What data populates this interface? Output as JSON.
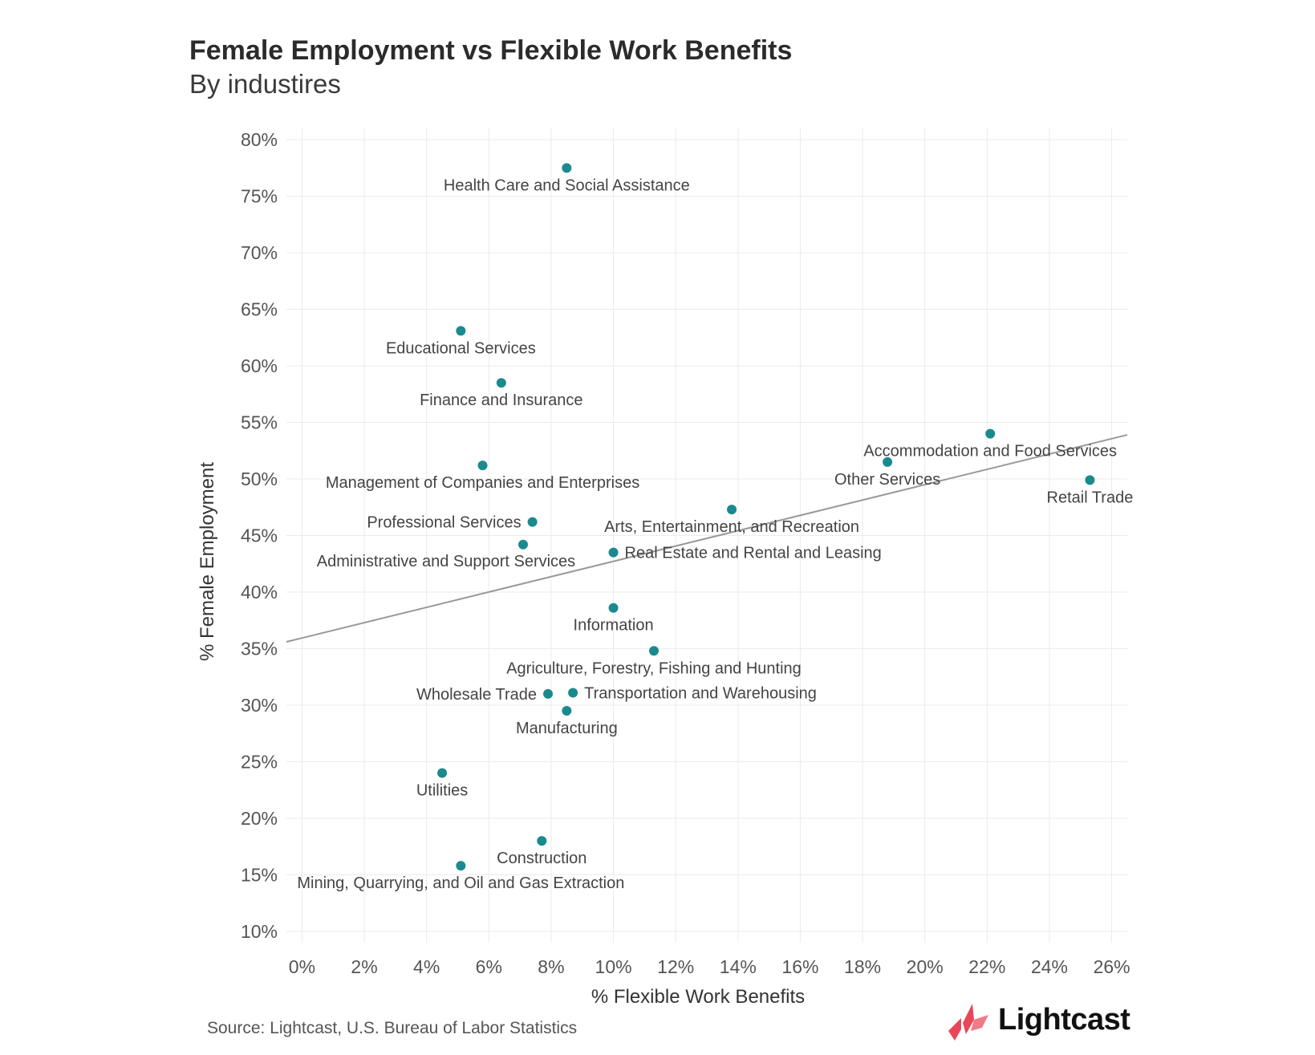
{
  "chart_data": {
    "type": "scatter",
    "title": "Female Employment vs Flexible Work Benefits",
    "subtitle": "By industires",
    "xlabel": "% Flexible Work Benefits",
    "ylabel": "% Female Employment",
    "xlim": [
      -0.5,
      26.5
    ],
    "ylim": [
      9,
      81
    ],
    "x_ticks": [
      0,
      2,
      4,
      6,
      8,
      10,
      12,
      14,
      16,
      18,
      20,
      22,
      24,
      26
    ],
    "x_tick_labels": [
      "0%",
      "2%",
      "4%",
      "6%",
      "8%",
      "10%",
      "12%",
      "14%",
      "16%",
      "18%",
      "20%",
      "22%",
      "24%",
      "26%"
    ],
    "y_ticks": [
      10,
      15,
      20,
      25,
      30,
      35,
      40,
      45,
      50,
      55,
      60,
      65,
      70,
      75,
      80
    ],
    "y_tick_labels": [
      "10%",
      "15%",
      "20%",
      "25%",
      "30%",
      "35%",
      "40%",
      "45%",
      "50%",
      "55%",
      "60%",
      "65%",
      "70%",
      "75%",
      "80%"
    ],
    "grid": true,
    "point_color": "#1a8a8f",
    "trendline": {
      "x": [
        -0.5,
        26.5
      ],
      "y": [
        35.6,
        53.9
      ],
      "color": "#999999"
    },
    "points": [
      {
        "label": "Health Care and Social Assistance",
        "x": 8.5,
        "y": 77.5,
        "pos": "below"
      },
      {
        "label": "Educational Services",
        "x": 5.1,
        "y": 63.1,
        "pos": "below"
      },
      {
        "label": "Finance and Insurance",
        "x": 6.4,
        "y": 58.5,
        "pos": "below"
      },
      {
        "label": "Management of Companies and Enterprises",
        "x": 5.8,
        "y": 51.2,
        "pos": "below"
      },
      {
        "label": "Professional Services",
        "x": 7.4,
        "y": 46.2,
        "pos": "left"
      },
      {
        "label": "Administrative and Support Services",
        "x": 7.1,
        "y": 44.2,
        "pos": "below-left"
      },
      {
        "label": "Real Estate and Rental and Leasing",
        "x": 10.0,
        "y": 43.5,
        "pos": "right"
      },
      {
        "label": "Arts, Entertainment, and Recreation",
        "x": 13.8,
        "y": 47.3,
        "pos": "below"
      },
      {
        "label": "Accommodation and Food Services",
        "x": 22.1,
        "y": 54.0,
        "pos": "below"
      },
      {
        "label": "Other Services",
        "x": 18.8,
        "y": 51.5,
        "pos": "below"
      },
      {
        "label": "Retail Trade",
        "x": 25.3,
        "y": 49.9,
        "pos": "below"
      },
      {
        "label": "Information",
        "x": 10.0,
        "y": 38.6,
        "pos": "below"
      },
      {
        "label": "Agriculture, Forestry, Fishing and Hunting",
        "x": 11.3,
        "y": 34.8,
        "pos": "below"
      },
      {
        "label": "Wholesale Trade",
        "x": 7.9,
        "y": 31.0,
        "pos": "left"
      },
      {
        "label": "Transportation and Warehousing",
        "x": 8.7,
        "y": 31.1,
        "pos": "right"
      },
      {
        "label": "Manufacturing",
        "x": 8.5,
        "y": 29.5,
        "pos": "below"
      },
      {
        "label": "Utilities",
        "x": 4.5,
        "y": 24.0,
        "pos": "below"
      },
      {
        "label": "Construction",
        "x": 7.7,
        "y": 18.0,
        "pos": "below"
      },
      {
        "label": "Mining, Quarrying, and Oil and Gas Extraction",
        "x": 5.1,
        "y": 15.8,
        "pos": "below"
      }
    ]
  },
  "footer": {
    "source": "Source:  Lightcast, U.S. Bureau of Labor Statistics",
    "logo_text": "Lightcast",
    "logo_color": "#e8475a"
  }
}
